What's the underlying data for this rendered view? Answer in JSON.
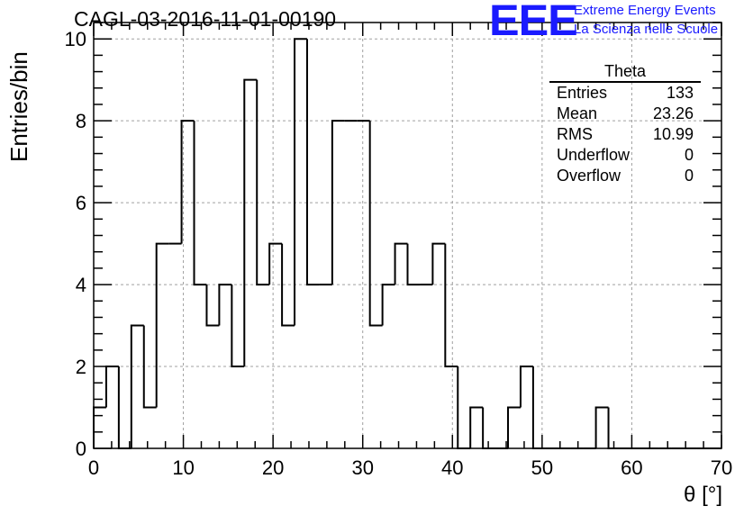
{
  "chart_data": {
    "type": "bar",
    "style": "step-histogram",
    "title": "CAGL-03-2016-11-01-00190",
    "xlabel": "θ [°]",
    "ylabel": "Entries/bin",
    "xlim": [
      0,
      70
    ],
    "ylim": [
      0,
      10.4
    ],
    "xticks": [
      0,
      10,
      20,
      30,
      40,
      50,
      60,
      70
    ],
    "yticks": [
      0,
      2,
      4,
      6,
      8,
      10
    ],
    "grid": true,
    "bin_edges": [
      0,
      1.4,
      2.8,
      4.2,
      5.6,
      7,
      8.4,
      9.8,
      11.2,
      12.6,
      14,
      15.4,
      16.8,
      18.2,
      19.6,
      21,
      22.4,
      23.8,
      25.2,
      26.6,
      28,
      29.4,
      30.8,
      32.2,
      33.6,
      35,
      36.4,
      37.8,
      39.2,
      40.6,
      42,
      43.4,
      44.8,
      46.2,
      47.6,
      49,
      50.4,
      51.8,
      53.2,
      54.6,
      56,
      57.4,
      58.8,
      60.2,
      61.6,
      63,
      64.4,
      65.8,
      67.2,
      68.6,
      70
    ],
    "values": [
      1,
      2,
      0,
      3,
      1,
      5,
      5,
      8,
      4,
      3,
      4,
      2,
      9,
      4,
      5,
      3,
      10,
      4,
      4,
      8,
      8,
      8,
      3,
      4,
      5,
      4,
      4,
      5,
      2,
      0,
      1,
      0,
      0,
      1,
      2,
      0,
      0,
      0,
      0,
      0,
      1,
      0,
      0,
      0,
      0,
      0,
      0,
      0,
      0,
      0
    ],
    "line_color": "#000000",
    "grid_color": "#a0a0a0",
    "stats_box": {
      "title": "Theta",
      "placement": "top-right",
      "rows": [
        {
          "label": "Entries",
          "value": "133"
        },
        {
          "label": "Mean",
          "value": "23.26"
        },
        {
          "label": "RMS",
          "value": "10.99"
        },
        {
          "label": "Underflow",
          "value": "0"
        },
        {
          "label": "Overflow",
          "value": "0"
        }
      ]
    }
  },
  "logo": {
    "text": "EEE",
    "line1": "Extreme Energy Events",
    "line2": "La Scienza nelle Scuole",
    "color": "#1a1aff"
  }
}
